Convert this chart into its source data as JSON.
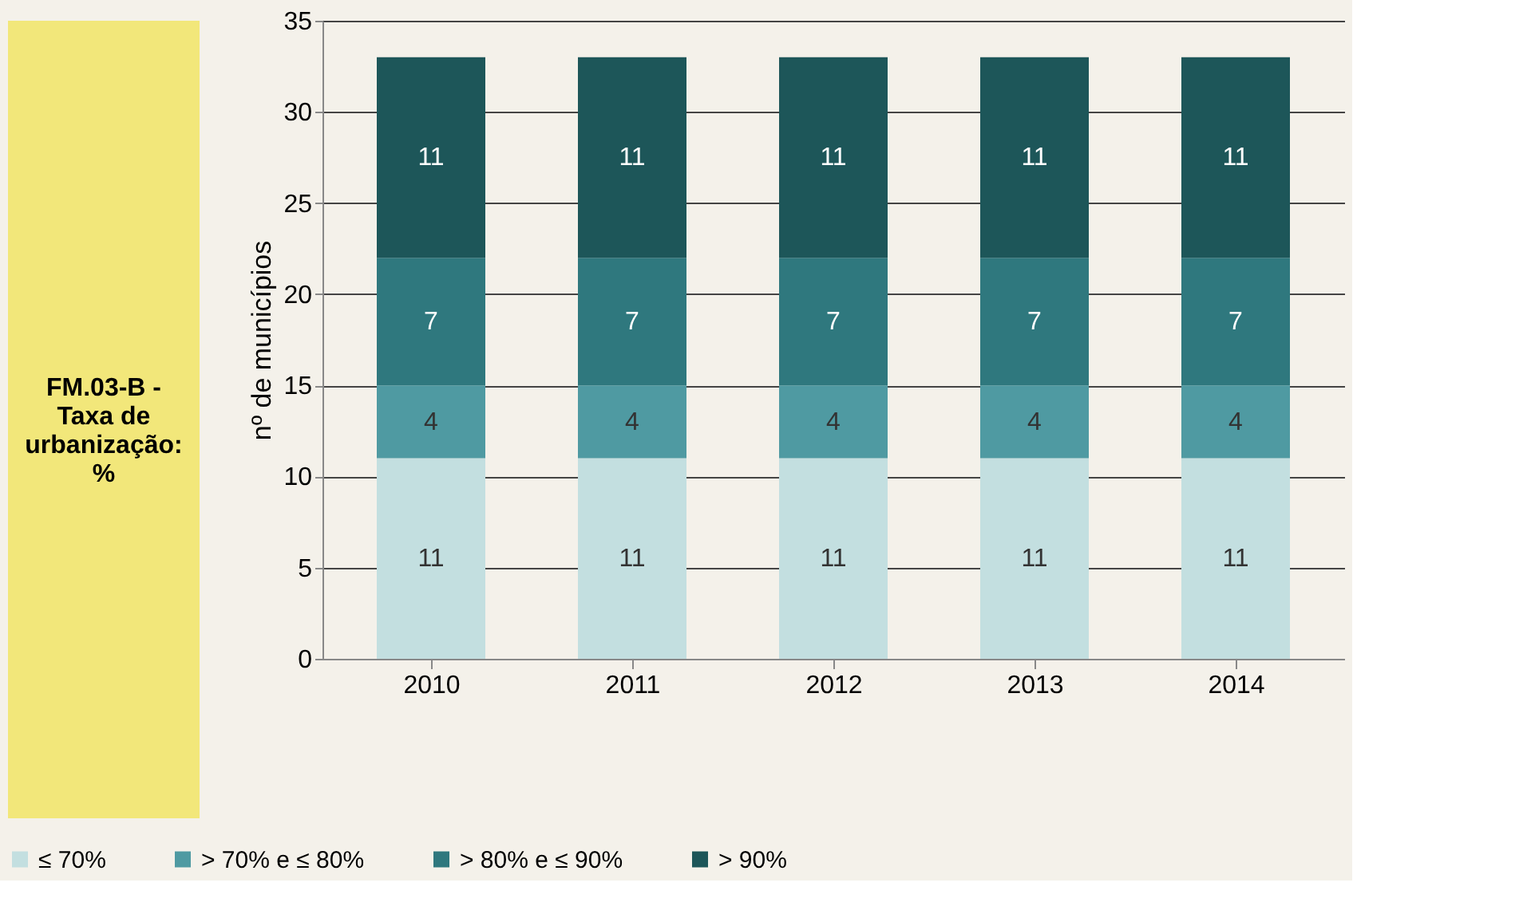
{
  "chart_data": {
    "type": "bar",
    "stacked": true,
    "ylabel": "nº de municípios",
    "annotations": [
      "FM.03-B - Taxa de urbanização: %"
    ],
    "categories": [
      "2010",
      "2011",
      "2012",
      "2013",
      "2014"
    ],
    "series": [
      {
        "name": "≤ 70%",
        "color": "#c3dfe0",
        "values": [
          11,
          11,
          11,
          11,
          11
        ]
      },
      {
        "name": "> 70% e ≤ 80%",
        "color": "#4f9aa2",
        "values": [
          4,
          4,
          4,
          4,
          4
        ]
      },
      {
        "name": "> 80% e ≤ 90%",
        "color": "#2f787e",
        "values": [
          7,
          7,
          7,
          7,
          7
        ]
      },
      {
        "name": "> 90%",
        "color": "#1d5659",
        "values": [
          11,
          11,
          11,
          11,
          11
        ]
      }
    ],
    "ylim": [
      0,
      35
    ],
    "yticks": [
      0,
      5,
      10,
      15,
      20,
      25,
      30,
      35
    ],
    "grid": "y",
    "legend": "bottom",
    "data_labels": true
  }
}
